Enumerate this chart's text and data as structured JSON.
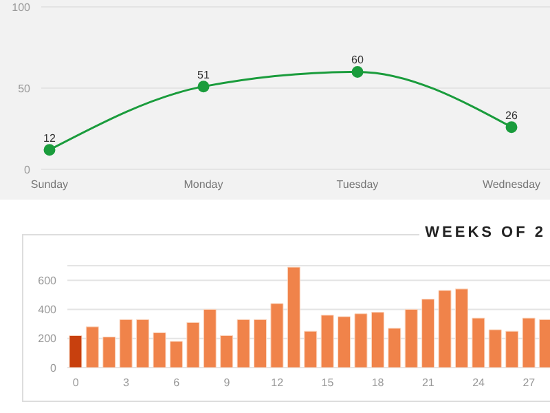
{
  "chart_data": [
    {
      "type": "line",
      "categories": [
        "Sunday",
        "Monday",
        "Tuesday",
        "Wednesday"
      ],
      "values": [
        12,
        51,
        60,
        26
      ],
      "color": "#1a9c3c",
      "data_labels": true,
      "marker": "circle",
      "ylim": [
        0,
        100
      ],
      "yticks": [
        0,
        50,
        100
      ],
      "grid": "y"
    },
    {
      "type": "bar",
      "title": "WEEKS OF 2",
      "categories": [
        "0",
        null,
        null,
        "3",
        null,
        null,
        "6",
        null,
        null,
        "9",
        null,
        null,
        "12",
        null,
        null,
        "15",
        null,
        null,
        "18",
        null,
        null,
        "21",
        null,
        null,
        "24",
        null,
        null,
        "27",
        null
      ],
      "values": [
        220,
        280,
        210,
        330,
        330,
        240,
        180,
        310,
        400,
        220,
        330,
        330,
        440,
        690,
        250,
        360,
        350,
        370,
        380,
        270,
        400,
        470,
        530,
        540,
        340,
        260,
        250,
        340,
        330
      ],
      "colors": [
        "#c8400e",
        "#f0834a",
        "#f0834a",
        "#f0834a",
        "#f0834a",
        "#f0834a",
        "#f0834a",
        "#f0834a",
        "#f0834a",
        "#f0834a",
        "#f0834a",
        "#f0834a",
        "#f0834a",
        "#f0834a",
        "#f0834a",
        "#f0834a",
        "#f0834a",
        "#f0834a",
        "#f0834a",
        "#f0834a",
        "#f0834a",
        "#f0834a",
        "#f0834a",
        "#f0834a",
        "#f0834a",
        "#f0834a",
        "#f0834a",
        "#f0834a",
        "#f0834a"
      ],
      "ylim": [
        0,
        700
      ],
      "yticks": [
        0,
        200,
        400,
        600
      ],
      "grid": "y"
    }
  ]
}
